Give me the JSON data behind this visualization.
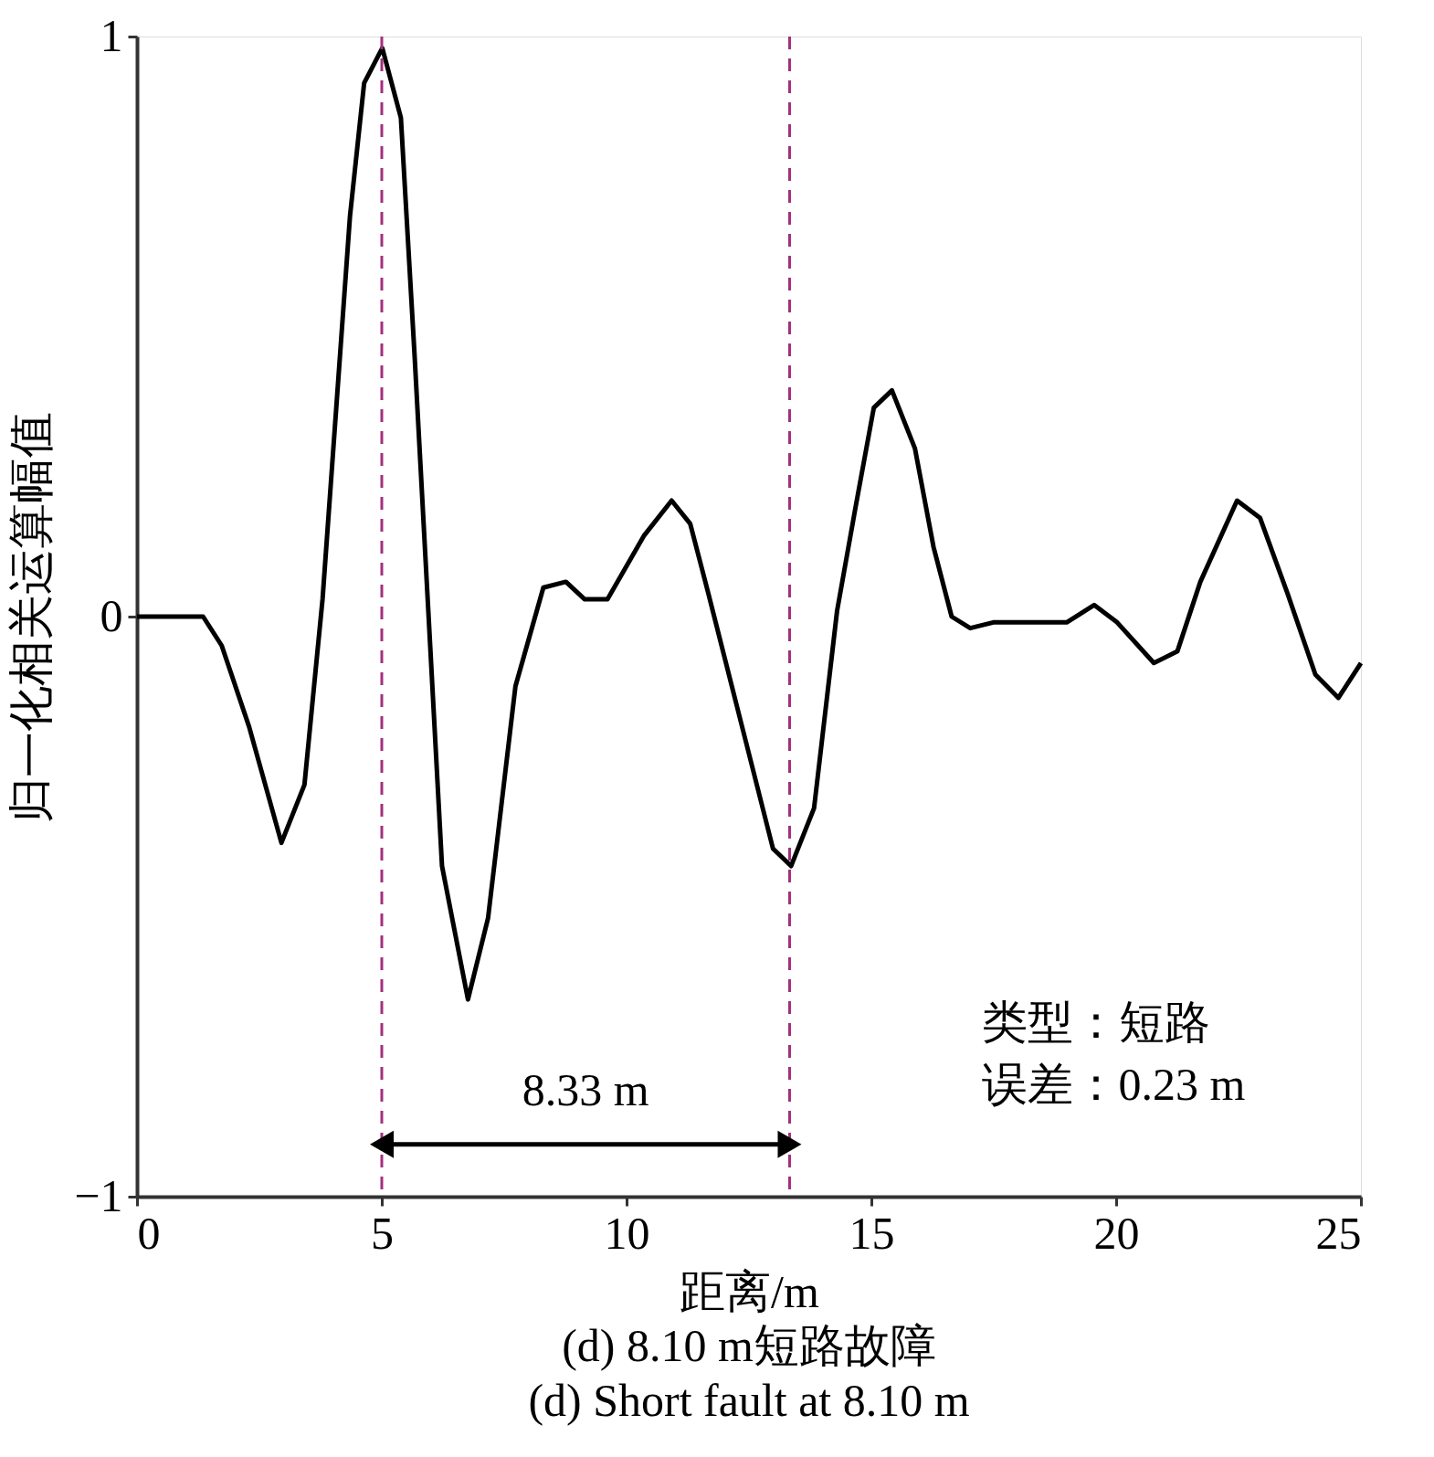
{
  "chart_data": {
    "type": "line",
    "title": "(d) 8.10 m短路故障",
    "subtitle": "(d) Short fault at 8.10 m",
    "xlabel": "距离/m",
    "ylabel": "归一化相关运算幅值",
    "x": [
      0,
      1.35,
      1.73,
      2.29,
      2.95,
      3.42,
      3.79,
      4.35,
      4.64,
      5.01,
      5.39,
      5.67,
      6.23,
      6.76,
      7.17,
      7.73,
      8.3,
      8.76,
      9.14,
      9.61,
      10.36,
      10.92,
      11.3,
      11.67,
      12.24,
      12.99,
      13.36,
      13.83,
      14.3,
      14.68,
      15.05,
      15.42,
      15.89,
      16.27,
      16.64,
      17.02,
      17.49,
      18.99,
      19.55,
      20.02,
      20.77,
      21.25,
      21.72,
      22.47,
      22.94,
      23.5,
      24.07,
      24.54,
      25
    ],
    "series": [
      {
        "color": "#000000",
        "values": [
          0,
          0,
          -0.05,
          -0.19,
          -0.39,
          -0.29,
          0.03,
          0.69,
          0.92,
          0.98,
          0.86,
          0.45,
          -0.43,
          -0.66,
          -0.52,
          -0.12,
          0.05,
          0.06,
          0.03,
          0.03,
          0.14,
          0.2,
          0.16,
          0.04,
          -0.15,
          -0.4,
          -0.43,
          -0.33,
          0.01,
          0.19,
          0.36,
          0.39,
          0.29,
          0.12,
          0,
          -0.02,
          -0.01,
          -0.01,
          0.02,
          -0.01,
          -0.08,
          -0.06,
          0.06,
          0.2,
          0.17,
          0.04,
          -0.1,
          -0.14,
          -0.08
        ]
      }
    ],
    "xlim": [
      0,
      25
    ],
    "xticks": [
      0,
      5,
      10,
      15,
      20,
      25
    ],
    "ylim": [
      -1,
      1
    ],
    "yticks": [
      1,
      0,
      {
        "value": -1,
        "label": "−1"
      }
    ],
    "grid": false,
    "marker": "none",
    "line_style": "solid",
    "ref_lines": [
      {
        "axis": "x",
        "value": 5,
        "color": "#a3307e",
        "line_style": "dashed"
      },
      {
        "axis": "x",
        "value": 13.33,
        "color": "#a3307e",
        "line_style": "dashed"
      }
    ],
    "annotations": [
      "8.33 m",
      "类型：短路",
      "误差：0.23 m"
    ]
  }
}
